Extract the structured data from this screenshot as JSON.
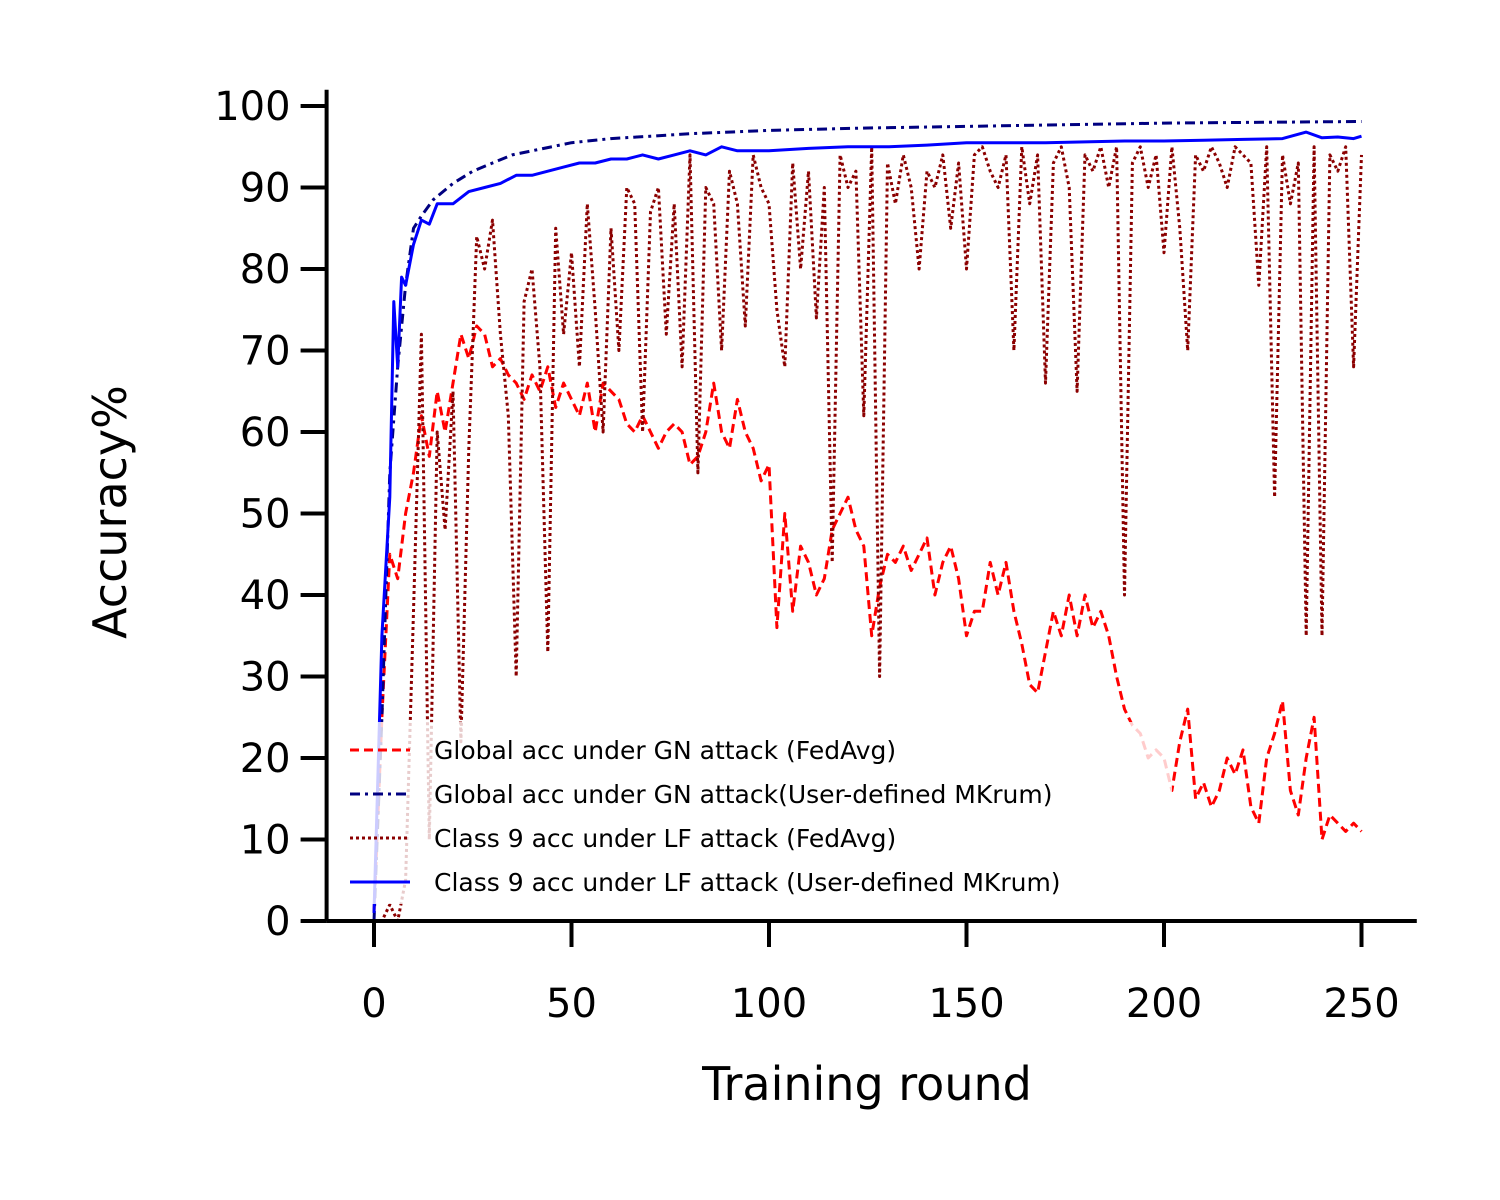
{
  "chart_data": {
    "type": "line",
    "xlabel": "Training round",
    "ylabel": "Accuracy%",
    "xlim": [
      -12,
      264
    ],
    "ylim": [
      0,
      102
    ],
    "xticks": [
      0,
      50,
      100,
      150,
      200,
      250
    ],
    "yticks": [
      0,
      10,
      20,
      30,
      40,
      50,
      60,
      70,
      80,
      90,
      100
    ],
    "grid": false,
    "legend_position": "lower-left",
    "series": [
      {
        "name": "Global acc under GN attack (FedAvg)",
        "color": "#ff0000",
        "dash": "dashed",
        "x": [
          0,
          2,
          4,
          6,
          8,
          10,
          12,
          14,
          16,
          18,
          20,
          22,
          24,
          26,
          28,
          30,
          32,
          34,
          36,
          38,
          40,
          42,
          44,
          46,
          48,
          50,
          52,
          54,
          56,
          58,
          60,
          62,
          64,
          66,
          68,
          70,
          72,
          74,
          76,
          78,
          80,
          82,
          84,
          86,
          88,
          90,
          92,
          94,
          96,
          98,
          100,
          102,
          104,
          106,
          108,
          110,
          112,
          114,
          116,
          118,
          120,
          122,
          124,
          126,
          128,
          130,
          132,
          134,
          136,
          138,
          140,
          142,
          144,
          146,
          148,
          150,
          152,
          154,
          156,
          158,
          160,
          162,
          164,
          166,
          168,
          170,
          172,
          174,
          176,
          178,
          180,
          182,
          184,
          186,
          188,
          190,
          192,
          194,
          196,
          198,
          200,
          202,
          204,
          206,
          208,
          210,
          212,
          214,
          216,
          218,
          220,
          222,
          224,
          226,
          228,
          230,
          232,
          234,
          236,
          238,
          240,
          242,
          244,
          246,
          248,
          250
        ],
        "values": [
          1,
          25,
          45,
          42,
          50,
          55,
          62,
          57,
          65,
          60,
          66,
          72,
          69,
          73,
          72,
          68,
          69,
          67,
          66,
          64,
          67,
          65,
          68,
          63,
          66,
          64,
          62,
          66,
          60,
          66,
          65,
          64,
          61,
          60,
          62,
          60,
          58,
          60,
          61,
          60,
          56,
          57,
          60,
          66,
          60,
          58,
          64,
          60,
          58,
          54,
          56,
          36,
          50,
          38,
          46,
          44,
          40,
          42,
          48,
          50,
          52,
          48,
          46,
          35,
          41,
          45,
          44,
          46,
          43,
          45,
          47,
          40,
          44,
          46,
          42,
          35,
          38,
          38,
          44,
          40,
          44,
          38,
          34,
          29,
          28,
          33,
          38,
          35,
          40,
          35,
          40,
          36,
          38,
          35,
          30,
          26,
          24,
          23,
          20,
          21,
          20,
          16,
          22,
          26,
          15,
          17,
          14,
          16,
          20,
          18,
          21,
          14,
          12,
          20,
          23,
          27,
          16,
          13,
          20,
          25,
          10,
          13,
          12,
          11,
          12,
          11
        ]
      },
      {
        "name": "Global acc under GN attack(User-defined MKrum)",
        "color": "#000080",
        "dash": "dashdot",
        "x": [
          0,
          2,
          4,
          6,
          8,
          10,
          12,
          15,
          20,
          25,
          30,
          35,
          40,
          50,
          60,
          70,
          80,
          100,
          125,
          150,
          175,
          200,
          225,
          250
        ],
        "values": [
          0,
          25,
          55,
          68,
          78,
          85,
          86.5,
          88.5,
          90.5,
          92,
          93,
          94,
          94.5,
          95.5,
          96,
          96.3,
          96.6,
          97,
          97.3,
          97.5,
          97.7,
          97.9,
          98,
          98.1
        ]
      },
      {
        "name": "Class 9 acc under LF attack (FedAvg)",
        "color": "#8b0000",
        "dash": "dotted",
        "x": [
          0,
          2,
          4,
          6,
          8,
          10,
          12,
          14,
          16,
          18,
          20,
          22,
          24,
          26,
          28,
          30,
          32,
          34,
          36,
          38,
          40,
          42,
          44,
          46,
          48,
          50,
          52,
          54,
          56,
          58,
          60,
          62,
          64,
          66,
          68,
          70,
          72,
          74,
          76,
          78,
          80,
          82,
          84,
          86,
          88,
          90,
          92,
          94,
          96,
          98,
          100,
          102,
          104,
          106,
          108,
          110,
          112,
          114,
          116,
          118,
          120,
          122,
          124,
          126,
          128,
          130,
          132,
          134,
          136,
          138,
          140,
          142,
          144,
          146,
          148,
          150,
          152,
          154,
          156,
          158,
          160,
          162,
          164,
          166,
          168,
          170,
          172,
          174,
          176,
          178,
          180,
          182,
          184,
          186,
          188,
          190,
          192,
          194,
          196,
          198,
          200,
          202,
          204,
          206,
          208,
          210,
          212,
          214,
          216,
          218,
          220,
          222,
          224,
          226,
          228,
          230,
          232,
          234,
          236,
          238,
          240,
          242,
          244,
          246,
          248,
          250
        ],
        "values": [
          0,
          0,
          2,
          0,
          5,
          38,
          72,
          10,
          60,
          48,
          65,
          22,
          58,
          84,
          80,
          86,
          72,
          62,
          30,
          76,
          80,
          68,
          33,
          85,
          72,
          82,
          68,
          88,
          75,
          60,
          85,
          70,
          90,
          88,
          60,
          87,
          90,
          72,
          88,
          68,
          94,
          55,
          90,
          88,
          70,
          92,
          88,
          73,
          94,
          90,
          88,
          75,
          68,
          93,
          80,
          92,
          74,
          90,
          44,
          94,
          90,
          92,
          62,
          95,
          30,
          93,
          88,
          94,
          90,
          80,
          92,
          90,
          94,
          85,
          93,
          80,
          94,
          95,
          92,
          90,
          94,
          70,
          95,
          88,
          94,
          66,
          93,
          95,
          90,
          65,
          94,
          92,
          95,
          90,
          95,
          40,
          93,
          95,
          90,
          94,
          82,
          95,
          85,
          70,
          94,
          92,
          95,
          93,
          90,
          95,
          94,
          93,
          78,
          95,
          52,
          94,
          88,
          93,
          35,
          95,
          35,
          94,
          92,
          95,
          68,
          94
        ]
      },
      {
        "name": "Class 9 acc under LF attack (User-defined MKrum)",
        "color": "#0000ff",
        "dash": "solid",
        "x": [
          0,
          2,
          4,
          5,
          6,
          7,
          8,
          10,
          12,
          14,
          16,
          20,
          24,
          28,
          32,
          36,
          40,
          44,
          48,
          52,
          56,
          60,
          64,
          68,
          72,
          76,
          80,
          84,
          88,
          92,
          96,
          100,
          110,
          120,
          130,
          140,
          150,
          160,
          170,
          180,
          190,
          200,
          210,
          220,
          230,
          236,
          240,
          244,
          248,
          250
        ],
        "values": [
          1,
          35,
          52,
          76,
          68,
          79,
          78,
          83,
          86,
          85.5,
          88,
          88,
          89.5,
          90,
          90.5,
          91.5,
          91.5,
          92,
          92.5,
          93,
          93,
          93.5,
          93.5,
          94,
          93.5,
          94,
          94.5,
          94,
          95,
          94.5,
          94.5,
          94.5,
          94.8,
          95,
          95,
          95.2,
          95.5,
          95.5,
          95.5,
          95.6,
          95.7,
          95.7,
          95.8,
          95.9,
          96,
          96.8,
          96.1,
          96.2,
          96,
          96.3
        ]
      }
    ]
  }
}
